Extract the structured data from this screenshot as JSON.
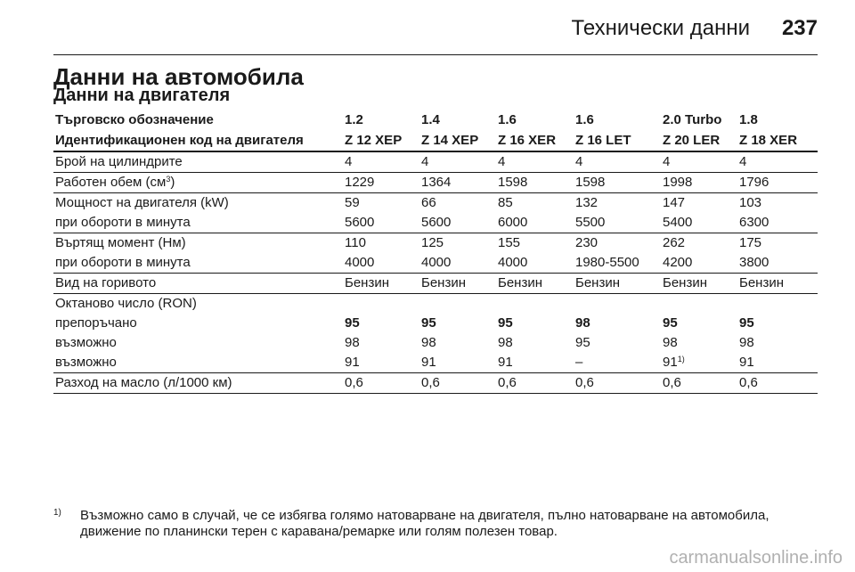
{
  "header": {
    "title": "Технически данни",
    "page_number": "237"
  },
  "heading": "Данни на автомобила",
  "subheading": "Данни на двигателя",
  "table": {
    "trade_label": "Търговско обозначение",
    "trade_values": [
      "1.2",
      "1.4",
      "1.6",
      "1.6",
      "2.0 Turbo",
      "1.8"
    ],
    "engine_code_label": "Идентификационен код на двигателя",
    "engine_codes": [
      "Z 12 XEP",
      "Z 14 XEP",
      "Z 16 XER",
      "Z 16 LET",
      "Z 20 LER",
      "Z 18 XER"
    ],
    "cylinders": {
      "label": "Брой на цилиндрите",
      "values": [
        "4",
        "4",
        "4",
        "4",
        "4",
        "4"
      ]
    },
    "displacement": {
      "label": "Работен обем (см",
      "label_sup": "3",
      "label_end": ")",
      "values": [
        "1229",
        "1364",
        "1598",
        "1598",
        "1998",
        "1796"
      ]
    },
    "power": {
      "label": "Мощност на двигателя (kW)",
      "values": [
        "59",
        "66",
        "85",
        "132",
        "147",
        "103"
      ]
    },
    "power_rpm": {
      "label": "при обороти в минута",
      "values": [
        "5600",
        "5600",
        "6000",
        "5500",
        "5400",
        "6300"
      ]
    },
    "torque": {
      "label": "Въртящ момент (Нм)",
      "values": [
        "110",
        "125",
        "155",
        "230",
        "262",
        "175"
      ]
    },
    "torque_rpm": {
      "label": "при обороти в минута",
      "values": [
        "4000",
        "4000",
        "4000",
        "1980-5500",
        "4200",
        "3800"
      ]
    },
    "fuel": {
      "label": "Вид на горивото",
      "values": [
        "Бензин",
        "Бензин",
        "Бензин",
        "Бензин",
        "Бензин",
        "Бензин"
      ]
    },
    "octane": {
      "label": "Октаново число (RON)"
    },
    "octane_recommended": {
      "label": "препоръчано",
      "values": [
        "95",
        "95",
        "95",
        "98",
        "95",
        "95"
      ]
    },
    "octane_possible_1": {
      "label": "възможно",
      "values": [
        "98",
        "98",
        "98",
        "95",
        "98",
        "98"
      ]
    },
    "octane_possible_2": {
      "label": "възможно",
      "values": [
        "91",
        "91",
        "91",
        "–",
        "91",
        "91"
      ],
      "footnote_ref": "1)"
    },
    "oil": {
      "label": "Разход на масло (л/1000 км)",
      "values": [
        "0,6",
        "0,6",
        "0,6",
        "0,6",
        "0,6",
        "0,6"
      ]
    }
  },
  "footnote": {
    "mark": "1)",
    "text": "Възможно само в случай, че се избягва голямо натоварване на двигателя, пълно натоварване на автомобила, движение по планински терен с каравана/ремарке или голям полезен товар."
  },
  "watermark": "carmanualsonline.info"
}
